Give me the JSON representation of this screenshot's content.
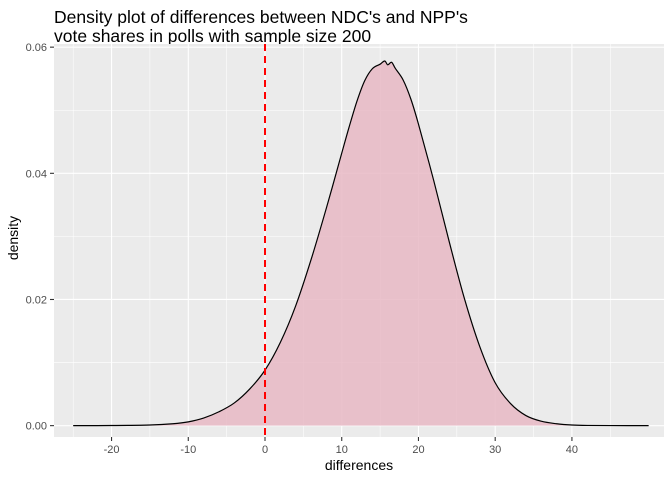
{
  "chart_data": {
    "type": "area",
    "title_lines": [
      "Density plot of differences between NDC's and NPP's",
      "vote shares in polls with sample size 200"
    ],
    "xlabel": "differences",
    "ylabel": "density",
    "xlim": [
      -27.5,
      52
    ],
    "ylim": [
      -0.0018,
      0.0605
    ],
    "x_ticks": [
      -20,
      -10,
      0,
      10,
      20,
      30,
      40
    ],
    "x_tick_labels": [
      "-20",
      "-10",
      "0",
      "10",
      "20",
      "30",
      "40"
    ],
    "y_ticks": [
      0.0,
      0.02,
      0.04,
      0.06
    ],
    "y_tick_labels": [
      "0.00",
      "0.02",
      "0.04",
      "0.06"
    ],
    "grid": true,
    "series": [
      {
        "x": [
          -25,
          -20,
          -15,
          -12,
          -10,
          -8,
          -6,
          -4,
          -2,
          0,
          2,
          4,
          6,
          8,
          10,
          11,
          12,
          13,
          14,
          15,
          15.6,
          16,
          16.5,
          17,
          18,
          19,
          20,
          22,
          24,
          26,
          28,
          30,
          32,
          34,
          36,
          38,
          40,
          42,
          45,
          50
        ],
        "y": [
          0.0,
          2e-05,
          0.0001,
          0.0003,
          0.0006,
          0.0012,
          0.0022,
          0.0036,
          0.0058,
          0.0088,
          0.0132,
          0.019,
          0.0263,
          0.0345,
          0.0432,
          0.0475,
          0.0515,
          0.0547,
          0.0566,
          0.0573,
          0.0578,
          0.0572,
          0.0576,
          0.0566,
          0.0548,
          0.0518,
          0.0478,
          0.0388,
          0.0292,
          0.0201,
          0.0125,
          0.0068,
          0.0035,
          0.0016,
          0.0007,
          0.0003,
          0.0001,
          3e-05,
          1e-05,
          0.0
        ]
      }
    ],
    "fill_color": "#e8b9c4",
    "fill_opacity": 0.85,
    "line_color": "#000000",
    "panel_color": "#ebebeb",
    "grid_color": "#ffffff",
    "vline": {
      "x": 0,
      "color": "#ff0000",
      "style": "dashed"
    }
  }
}
